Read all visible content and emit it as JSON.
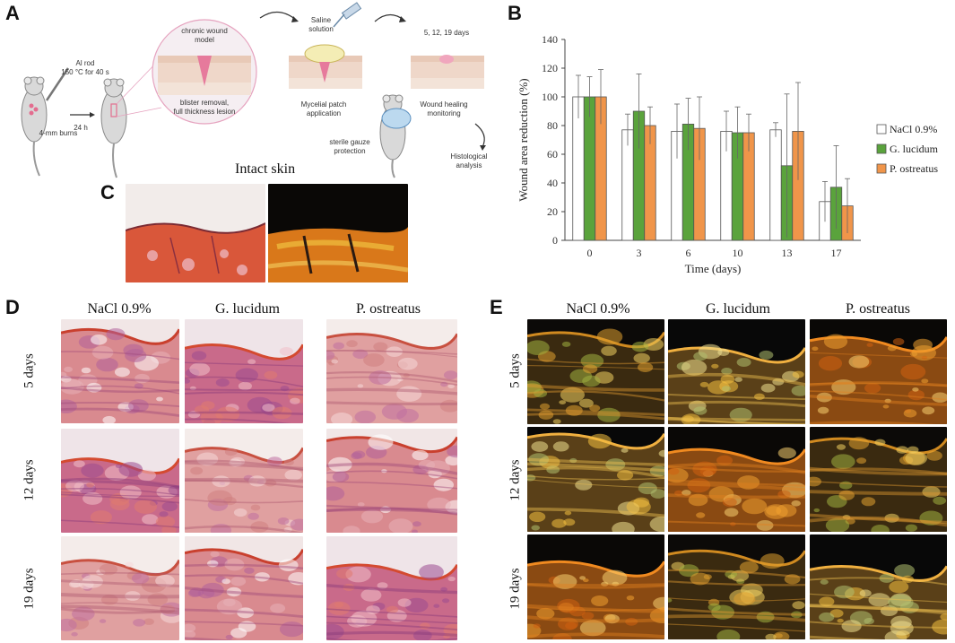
{
  "panels": {
    "A": "A",
    "B": "B",
    "C": "C",
    "D": "D",
    "E": "E"
  },
  "schematic": {
    "al_rod": "Al rod",
    "al_rod_temp": "150 °C for 40 s",
    "time_24h": "24 h",
    "burns": "4-mm burns",
    "chronic_model_1": "chronic wound",
    "chronic_model_2": "model",
    "blister_1": "blister removal,",
    "blister_2": "full thickness lesion",
    "saline_1": "Saline",
    "saline_2": "solution",
    "mycelial_1": "Mycelial patch",
    "mycelial_2": "application",
    "days_label": "5, 12, 19 days",
    "monitor_1": "Wound healing",
    "monitor_2": "monitoring",
    "gauze_1": "sterile gauze",
    "gauze_2": "protection",
    "histo_1": "Histological",
    "histo_2": "analysis"
  },
  "intact_title": "Intact skin",
  "columns_D": [
    "NaCl 0.9%",
    "G. lucidum",
    "P. ostreatus"
  ],
  "columns_E": [
    "NaCl 0.9%",
    "G. lucidum",
    "P. ostreatus"
  ],
  "rows": [
    "5 days",
    "12 days",
    "19 days"
  ],
  "colors": {
    "nacl": "#ffffff",
    "g_lucidum": "#5aa33c",
    "p_ostreatus": "#f0954a",
    "bar_edge": "#555555"
  },
  "chart_data": {
    "type": "bar",
    "xlabel": "Time (days)",
    "ylabel": "Wound area reduction (%)",
    "ylim": [
      0,
      140
    ],
    "yticks": [
      "0",
      "20",
      "40",
      "60",
      "80",
      "100",
      "120",
      "140"
    ],
    "categories": [
      "0",
      "3",
      "6",
      "10",
      "13",
      "17"
    ],
    "grid": false,
    "legend": "right",
    "series": [
      {
        "name": "NaCl 0.9%",
        "values": [
          100,
          77,
          76,
          76,
          77,
          27
        ],
        "errors": [
          15,
          11,
          19,
          14,
          5,
          14
        ]
      },
      {
        "name": "G. lucidum",
        "values": [
          100,
          90,
          81,
          75,
          52,
          37
        ],
        "errors": [
          14,
          26,
          18,
          18,
          50,
          29
        ]
      },
      {
        "name": "P. ostreatus",
        "values": [
          100,
          80,
          78,
          75,
          76,
          24
        ],
        "errors": [
          19,
          13,
          22,
          13,
          34,
          19
        ]
      }
    ]
  }
}
